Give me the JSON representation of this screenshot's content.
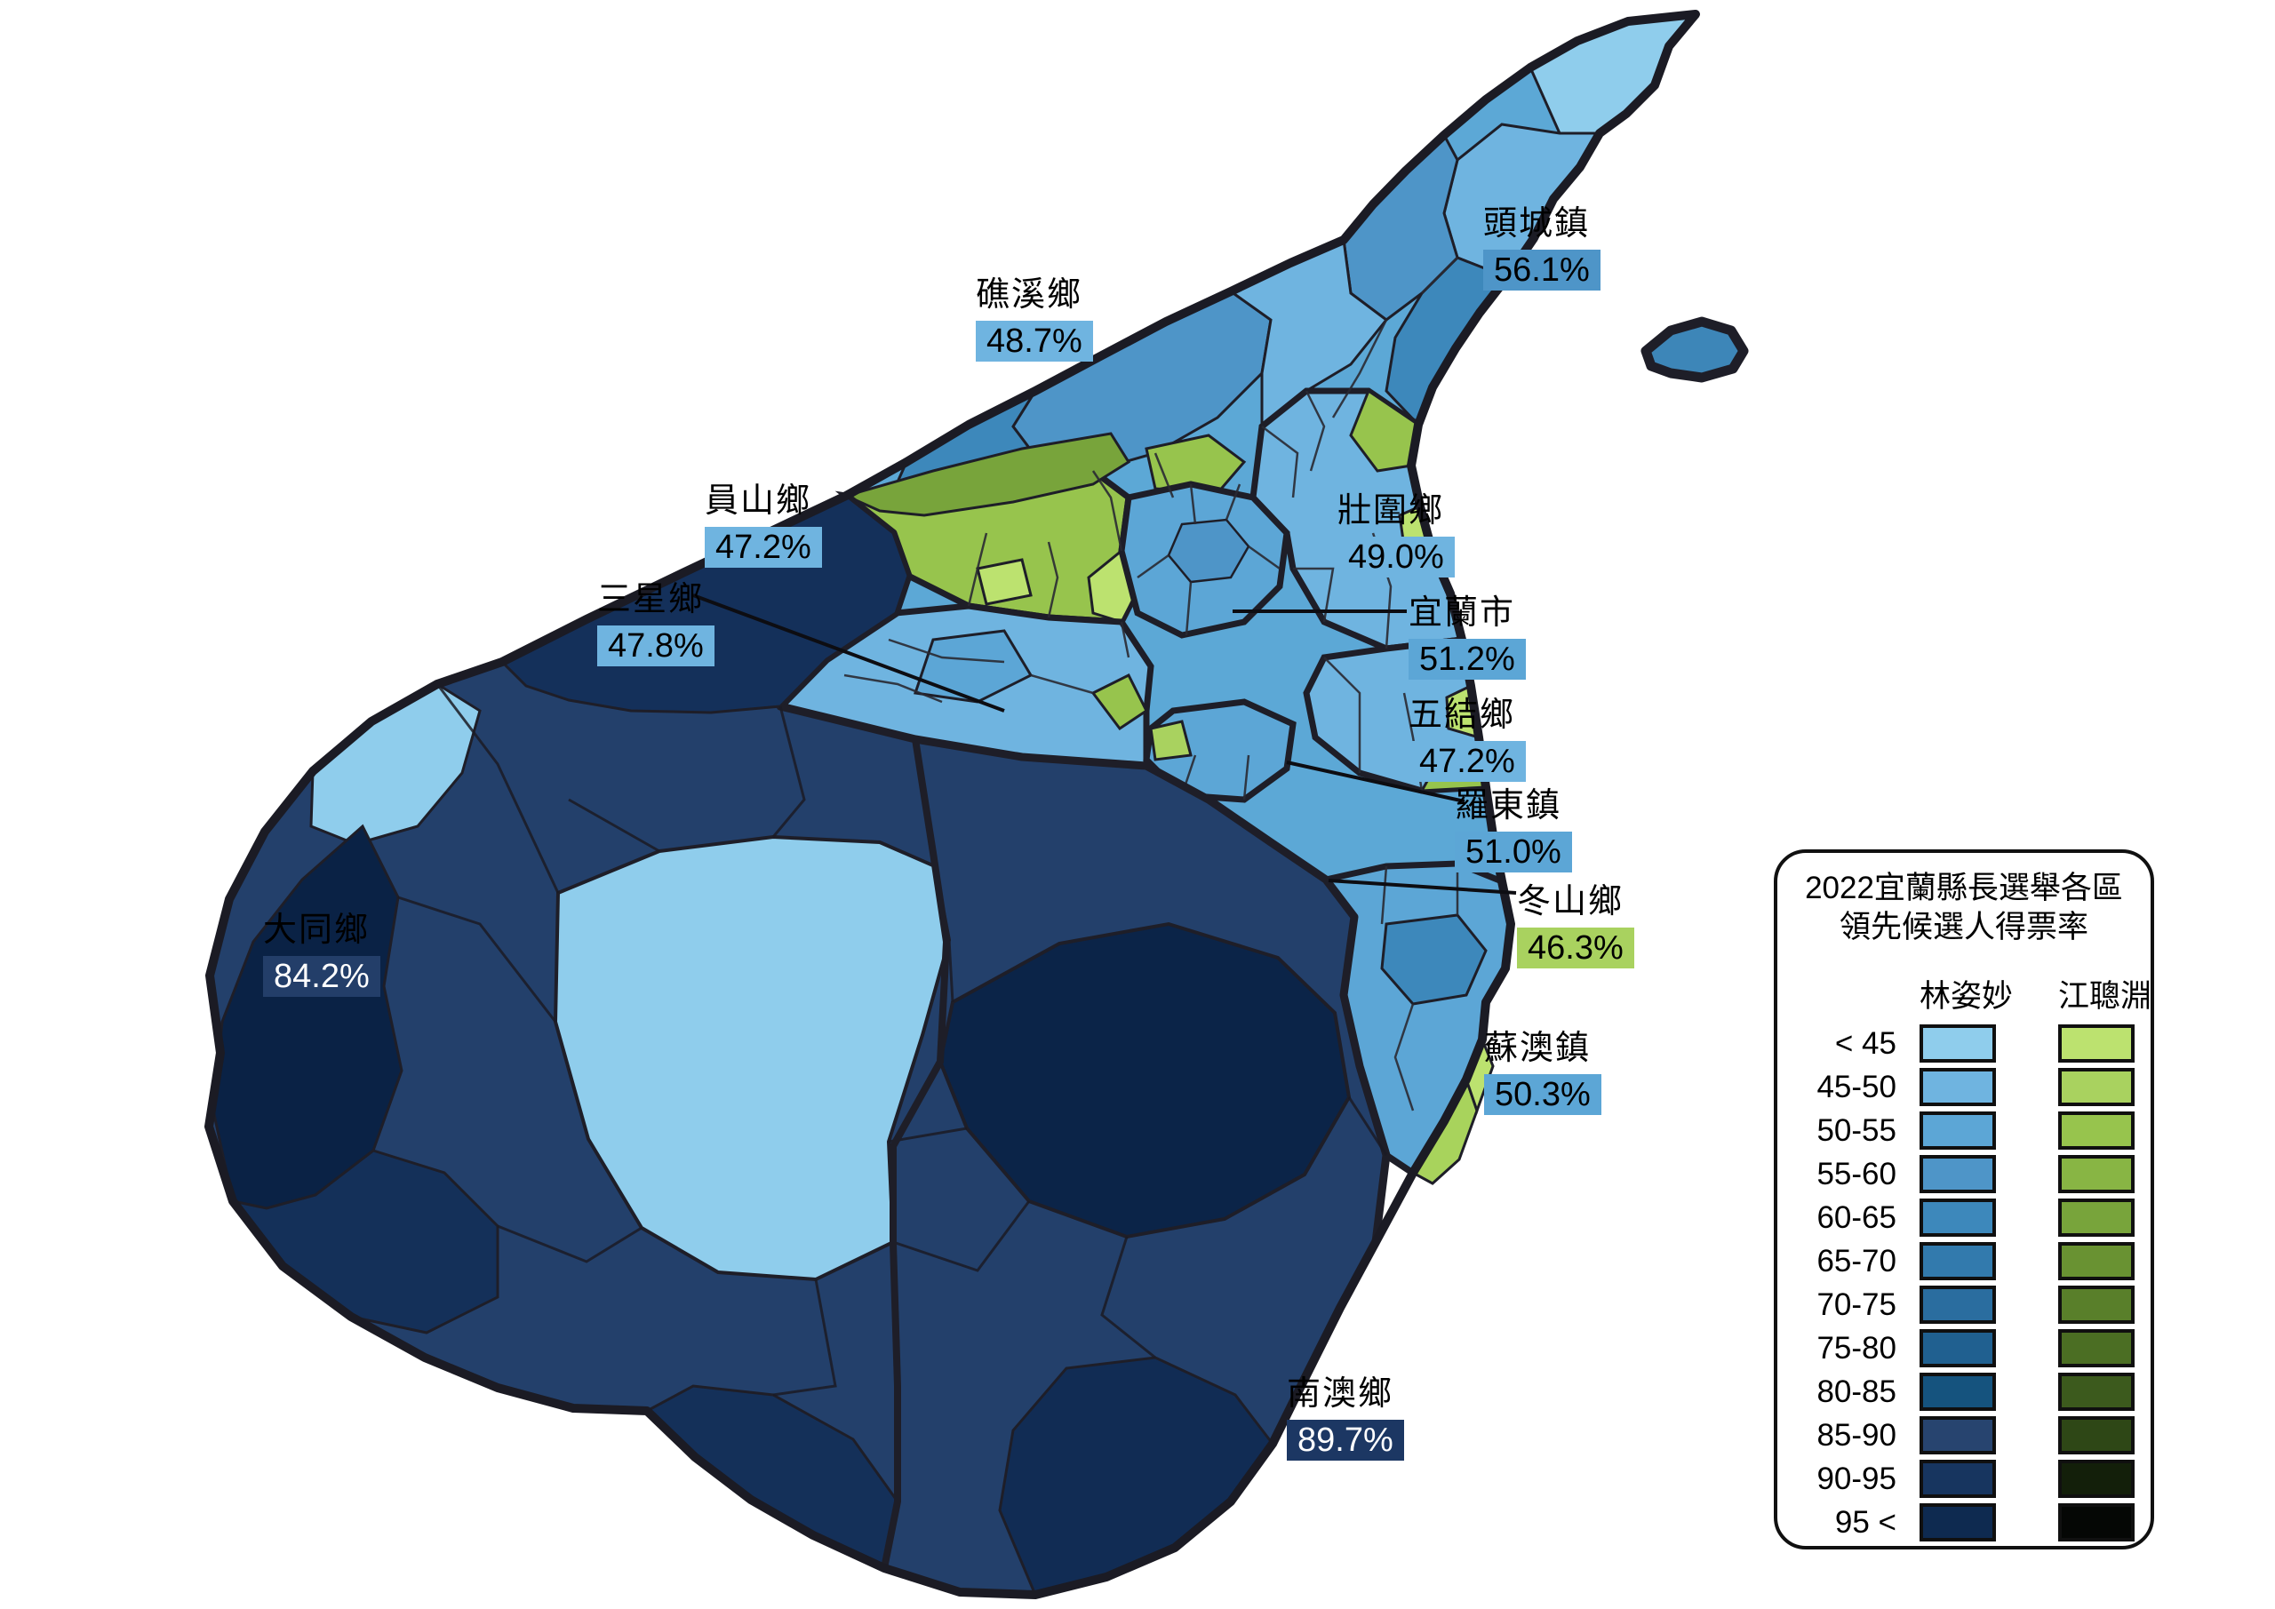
{
  "legend": {
    "title_line1": "2022宜蘭縣長選舉各區",
    "title_line2": "領先候選人得票率",
    "classes": [
      "< 45",
      "45-50",
      "50-55",
      "55-60",
      "60-65",
      "65-70",
      "70-75",
      "75-80",
      "80-85",
      "85-90",
      "90-95",
      "95 <"
    ],
    "candidates": [
      {
        "name": "林姿妙",
        "colors": [
          "#8FCDEC",
          "#6FB4E0",
          "#5CA6D6",
          "#4E95C8",
          "#3D88BB",
          "#327AAD",
          "#2A6D9F",
          "#206090",
          "#15537E",
          "#27446F",
          "#17355F",
          "#0E2A50"
        ]
      },
      {
        "name": "江聰淵",
        "colors": [
          "#BCE26F",
          "#A9D25F",
          "#97C44D",
          "#88B544",
          "#78A43B",
          "#699232",
          "#597F2A",
          "#4B6E23",
          "#3C5A1D",
          "#2E4716",
          "#131F0A",
          "#050705"
        ]
      }
    ]
  },
  "townships": [
    {
      "key": "toucheng",
      "name": "頭城鎮",
      "value": "56.1%",
      "box_color": "#4E95C8",
      "text_color": "#000000"
    },
    {
      "key": "jiaoxi",
      "name": "礁溪鄉",
      "value": "48.7%",
      "box_color": "#6FB4E0",
      "text_color": "#000000"
    },
    {
      "key": "yuanshan",
      "name": "員山鄉",
      "value": "47.2%",
      "box_color": "#6FB4E0",
      "text_color": "#000000"
    },
    {
      "key": "sanxing",
      "name": "三星鄉",
      "value": "47.8%",
      "box_color": "#6FB4E0",
      "text_color": "#000000"
    },
    {
      "key": "zhuangwei",
      "name": "壯圍鄉",
      "value": "49.0%",
      "box_color": "#6FB4E0",
      "text_color": "#000000"
    },
    {
      "key": "yilancity",
      "name": "宜蘭市",
      "value": "51.2%",
      "box_color": "#5CA6D6",
      "text_color": "#000000"
    },
    {
      "key": "wujie",
      "name": "五結鄉",
      "value": "47.2%",
      "box_color": "#6FB4E0",
      "text_color": "#000000"
    },
    {
      "key": "luodong",
      "name": "羅東鎮",
      "value": "51.0%",
      "box_color": "#5CA6D6",
      "text_color": "#000000"
    },
    {
      "key": "dongshan",
      "name": "冬山鄉",
      "value": "46.3%",
      "box_color": "#A9D25F",
      "text_color": "#000000"
    },
    {
      "key": "suao",
      "name": "蘇澳鎮",
      "value": "50.3%",
      "box_color": "#5CA6D6",
      "text_color": "#000000"
    },
    {
      "key": "datong",
      "name": "大同鄉",
      "value": "84.2%",
      "box_color": "#233E69",
      "text_color": "#FFFFFF"
    },
    {
      "key": "nanao",
      "name": "南澳鄉",
      "value": "89.7%",
      "box_color": "#1C3763",
      "text_color": "#FFFFFF"
    }
  ]
}
